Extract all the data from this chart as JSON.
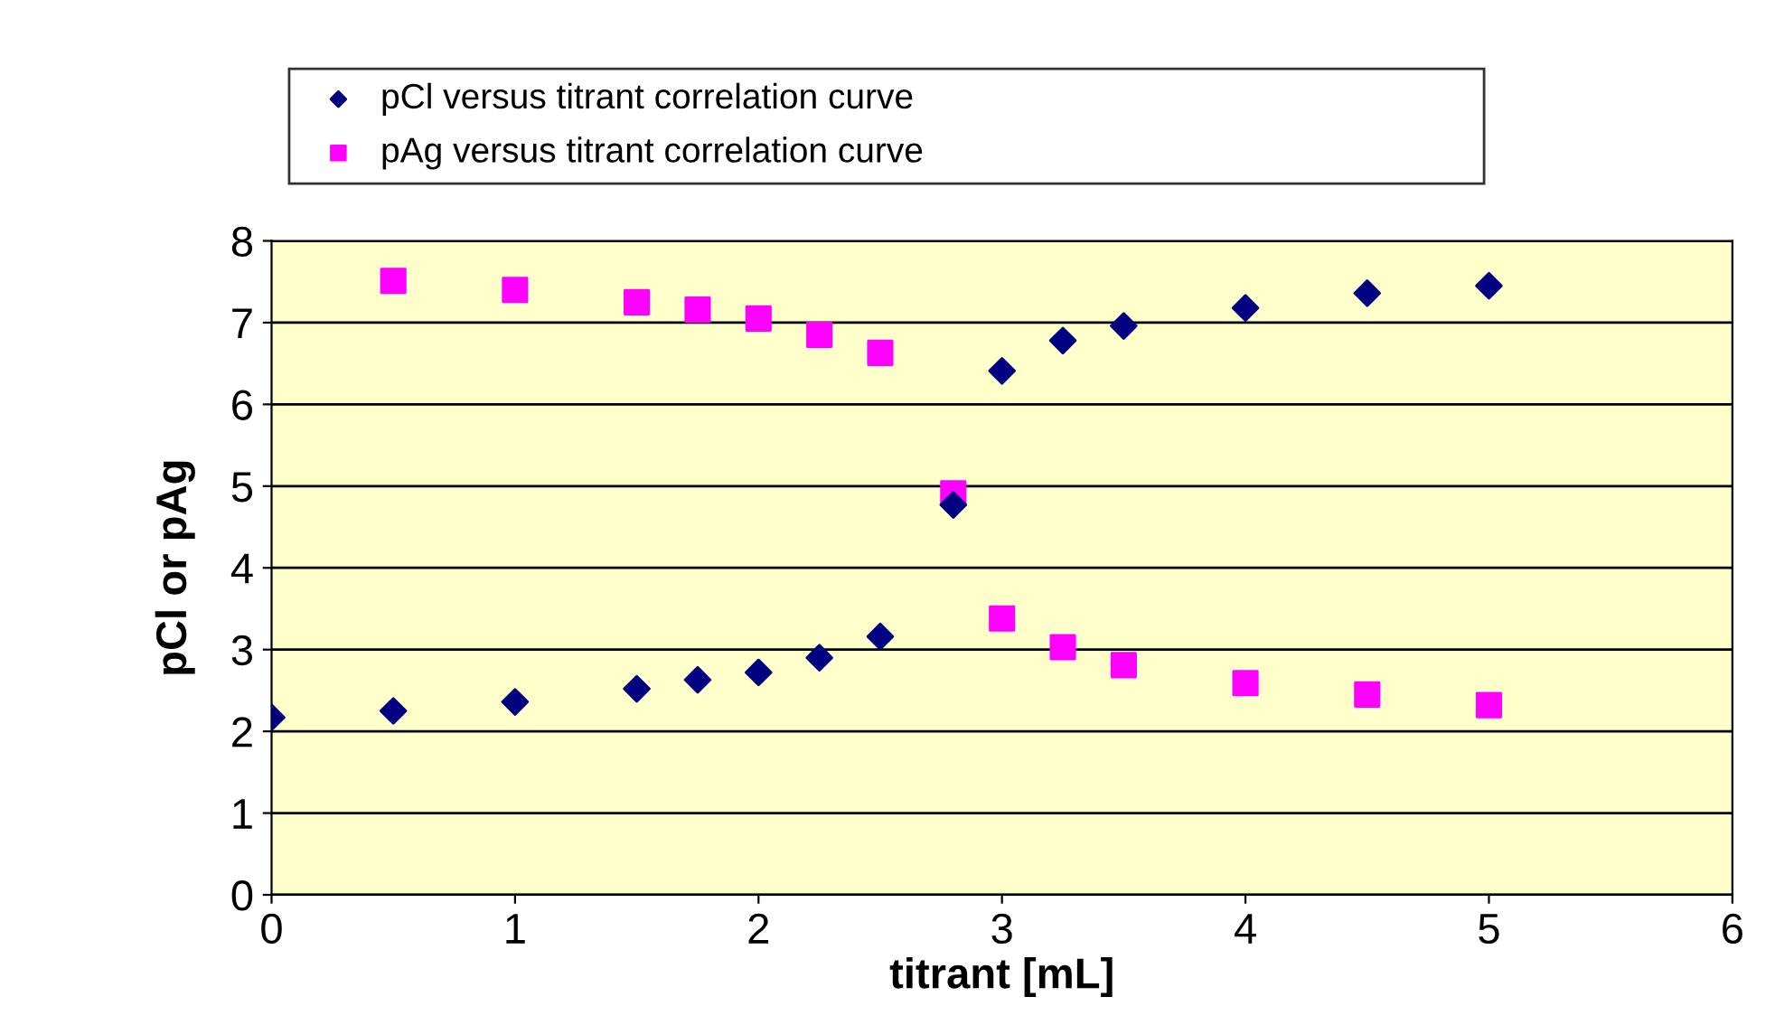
{
  "chart_data": {
    "type": "scatter",
    "xlabel": "titrant [mL]",
    "ylabel": "pCl or pAg",
    "xlim": [
      0,
      6
    ],
    "xticks": [
      0,
      1,
      2,
      3,
      4,
      5,
      6
    ],
    "ylim": [
      0,
      8
    ],
    "yticks": [
      0,
      1,
      2,
      3,
      4,
      5,
      6,
      7,
      8
    ],
    "grid": "y",
    "legend": "top",
    "series": [
      {
        "name": "pCl versus titrant correlation curve",
        "color": "#000080",
        "marker": "diamond",
        "x": [
          0,
          0.5,
          1,
          1.5,
          1.75,
          2,
          2.25,
          2.5,
          2.8,
          3,
          3.25,
          3.5,
          4,
          4.5,
          5
        ],
        "values": [
          2.17,
          2.25,
          2.36,
          2.52,
          2.63,
          2.72,
          2.9,
          3.16,
          4.77,
          6.41,
          6.78,
          6.96,
          7.18,
          7.36,
          7.45
        ]
      },
      {
        "name": "pAg versus titrant correlation curve",
        "color": "#ff00ff",
        "marker": "square",
        "x": [
          0.5,
          1,
          1.5,
          1.75,
          2,
          2.25,
          2.5,
          2.8,
          3,
          3.25,
          3.5,
          4,
          4.5,
          5
        ],
        "values": [
          7.51,
          7.4,
          7.25,
          7.16,
          7.05,
          6.85,
          6.63,
          4.91,
          3.38,
          3.03,
          2.81,
          2.59,
          2.45,
          2.32
        ]
      }
    ]
  }
}
